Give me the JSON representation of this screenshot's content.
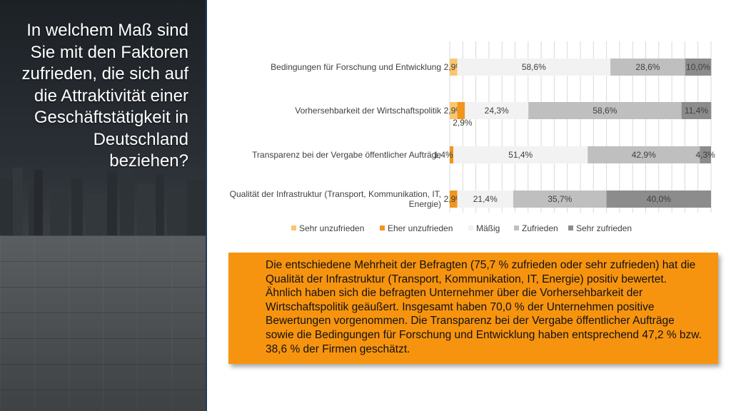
{
  "title": "In welchem Maß sind Sie mit den Faktoren zufrieden, die sich auf die Attraktivität einer Geschäftstätigkeit in Deutschland beziehen?",
  "summary": "Die entschiedene Mehrheit der Befragten (75,7 % zufrieden oder sehr zufrieden) hat die Qualität der Infrastruktur (Transport, Kommunikation, IT, Energie) positiv bewertet. Ähnlich haben sich die befragten Unternehmer über die Vorhersehbarkeit der Wirtschaftspolitik geäußert. Insgesamt haben 70,0 % der Unternehmen positive Bewertungen vorgenommen. Die Transparenz bei der Vergabe öffentlicher Aufträge sowie die Bedingungen für Forschung und Entwicklung haben entsprechend 47,2 % bzw. 38,6 % der Firmen geschätzt.",
  "chart_data": {
    "type": "bar",
    "orientation": "horizontal",
    "stacked": true,
    "categories": [
      [
        "Bedingungen für Forschung und Entwicklung"
      ],
      [
        "Vorhersehbarkeit der Wirtschaftspolitik"
      ],
      [
        "Transparenz bei der Vergabe öffentlicher Aufträge"
      ],
      [
        "Qualität der Infrastruktur (Transport, Kommunikation, IT,",
        "Energie)"
      ]
    ],
    "series": [
      {
        "name": "Sehr unzufrieden",
        "color": "#f9c56e",
        "values": [
          2.9,
          2.9,
          0,
          0
        ],
        "labels": [
          "2,9%",
          "2,9%",
          "",
          ""
        ]
      },
      {
        "name": "Eher unzufrieden",
        "color": "#f0961c",
        "values": [
          0,
          2.9,
          1.4,
          2.9
        ],
        "labels": [
          "",
          "2,9%",
          "1,4%",
          "2,9%"
        ]
      },
      {
        "name": "Mäßig",
        "color": "#f2f2f2",
        "values": [
          58.6,
          24.3,
          51.4,
          21.4
        ],
        "labels": [
          "58,6%",
          "24,3%",
          "51,4%",
          "21,4%"
        ]
      },
      {
        "name": "Zufrieden",
        "color": "#bfbfbf",
        "values": [
          28.6,
          58.6,
          42.9,
          35.7
        ],
        "labels": [
          "28,6%",
          "58,6%",
          "42,9%",
          "35,7%"
        ]
      },
      {
        "name": "Sehr zufrieden",
        "color": "#8c8c8c",
        "values": [
          10.0,
          11.4,
          4.3,
          40.0
        ],
        "labels": [
          "10,0%",
          "11,4%",
          "4,3%",
          "40,0%"
        ]
      }
    ],
    "xlim": [
      0,
      100
    ],
    "grid": true,
    "legend": "bottom"
  }
}
